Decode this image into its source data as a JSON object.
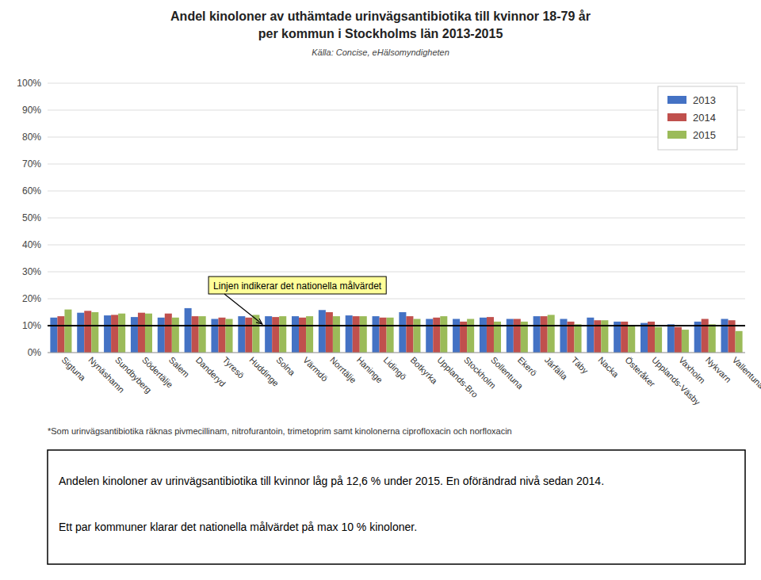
{
  "chart_data": {
    "type": "bar",
    "title": [
      "Andel kinoloner av uthämtade urinvägsantibiotika till kvinnor 18-79 år",
      "per kommun i Stockholms län 2013-2015"
    ],
    "subtitle": "Källa: Concise, eHälsomyndigheten",
    "categories": [
      "Sigtuna",
      "Nynäshamn",
      "Sundbyberg",
      "Södertälje",
      "Salem",
      "Danderyd",
      "Tyresö",
      "Huddinge",
      "Solna",
      "Värmdö",
      "Norrtälje",
      "Haninge",
      "Lidingö",
      "Botkyrka",
      "Upplands-Bro",
      "Stockholm",
      "Sollentuna",
      "Ekerö",
      "Järfälla",
      "Täby",
      "Nacka",
      "Österåker",
      "Upplands-Väsby",
      "Vaxholm",
      "Nykvarn",
      "Vallentuna"
    ],
    "series": [
      {
        "name": "2013",
        "color": "#4472C4",
        "values": [
          13.0,
          14.8,
          13.8,
          13.2,
          13.0,
          16.5,
          12.5,
          13.5,
          13.5,
          13.5,
          15.8,
          13.8,
          13.5,
          15.0,
          12.5,
          12.5,
          13.0,
          12.5,
          13.5,
          12.5,
          13.0,
          11.5,
          11.0,
          10.5,
          11.5,
          12.5
        ]
      },
      {
        "name": "2014",
        "color": "#C0504D",
        "values": [
          13.5,
          15.5,
          14.0,
          14.8,
          14.5,
          13.5,
          13.0,
          13.0,
          13.2,
          13.0,
          15.0,
          13.5,
          13.0,
          13.5,
          13.0,
          11.5,
          13.2,
          12.5,
          13.5,
          11.5,
          12.0,
          11.5,
          11.5,
          9.5,
          12.5,
          12.0
        ]
      },
      {
        "name": "2015",
        "color": "#9BBB59",
        "values": [
          16.0,
          15.0,
          14.5,
          14.5,
          13.0,
          13.5,
          12.5,
          14.0,
          13.5,
          13.5,
          13.5,
          13.5,
          13.0,
          12.5,
          13.5,
          12.5,
          11.5,
          11.5,
          14.0,
          10.5,
          12.0,
          10.0,
          9.5,
          8.5,
          10.5,
          8.0
        ]
      }
    ],
    "ylim": [
      0,
      100
    ],
    "yticks": [
      {
        "value": 0,
        "label": "0%"
      },
      {
        "value": 10,
        "label": "10%"
      },
      {
        "value": 20,
        "label": "20%"
      },
      {
        "value": 30,
        "label": "30%"
      },
      {
        "value": 40,
        "label": "40%"
      },
      {
        "value": 50,
        "label": "50%"
      },
      {
        "value": 60,
        "label": "60%"
      },
      {
        "value": 70,
        "label": "70%"
      },
      {
        "value": 80,
        "label": "80%"
      },
      {
        "value": 90,
        "label": "90%"
      },
      {
        "value": 100,
        "label": "100%"
      }
    ],
    "reference_line": 10,
    "annotation": "Linjen indikerar det nationella målvärdet",
    "footnote": "*Som urinvägsantibiotika räknas pivmecillinam, nitrofurantoin, trimetoprim samt kinolonerna ciprofloxacin och norfloxacin",
    "summary": [
      "Andelen kinoloner av urinvägsantibiotika till kvinnor låg på 12,6 % under 2015. En oförändrad nivå sedan 2014.",
      "Ett par kommuner klarar det nationella målvärdet på max 10 % kinoloner."
    ],
    "grid": true,
    "legend": "upper right"
  }
}
